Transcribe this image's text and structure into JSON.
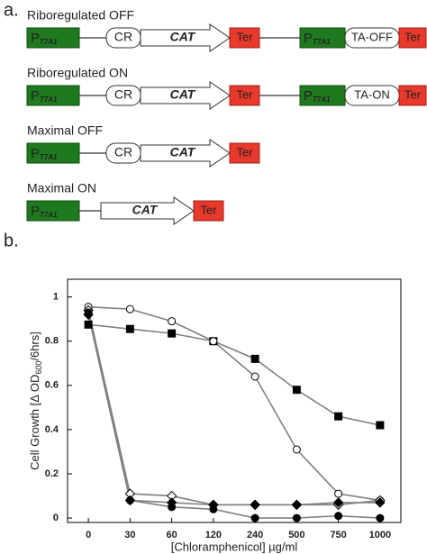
{
  "panel_a": {
    "label": "a.",
    "constructs": [
      {
        "title": "Riboregulated OFF",
        "parts": [
          {
            "kind": "promoter",
            "text": "P",
            "sub": "T7A1"
          },
          {
            "kind": "cr",
            "text": "CR"
          },
          {
            "kind": "cds",
            "text": "CAT"
          },
          {
            "kind": "ter",
            "text": "Ter"
          },
          {
            "kind": "promoter",
            "text": "P",
            "sub": "T7A1"
          },
          {
            "kind": "ta",
            "text": "TA-OFF"
          },
          {
            "kind": "ter",
            "text": "Ter"
          }
        ]
      },
      {
        "title": "Riboregulated ON",
        "parts": [
          {
            "kind": "promoter",
            "text": "P",
            "sub": "T7A1"
          },
          {
            "kind": "cr",
            "text": "CR"
          },
          {
            "kind": "cds",
            "text": "CAT"
          },
          {
            "kind": "ter",
            "text": "Ter"
          },
          {
            "kind": "promoter",
            "text": "P",
            "sub": "T7A1"
          },
          {
            "kind": "ta",
            "text": "TA-ON"
          },
          {
            "kind": "ter",
            "text": "Ter"
          }
        ]
      },
      {
        "title": "Maximal OFF",
        "parts": [
          {
            "kind": "promoter",
            "text": "P",
            "sub": "T7A1"
          },
          {
            "kind": "cr",
            "text": "CR"
          },
          {
            "kind": "cds",
            "text": "CAT"
          },
          {
            "kind": "ter",
            "text": "Ter"
          }
        ]
      },
      {
        "title": "Maximal ON",
        "parts": [
          {
            "kind": "promoter",
            "text": "P",
            "sub": "T7A1"
          },
          {
            "kind": "cds",
            "text": "CAT"
          },
          {
            "kind": "ter",
            "text": "Ter"
          }
        ]
      }
    ]
  },
  "panel_b": {
    "label": "b."
  },
  "chart_data": {
    "type": "line",
    "x_label": "[Chloramphenicol] µg/ml",
    "y_label": {
      "main": "Cell Growth [Δ OD",
      "sub": "600",
      "tail": "/6hrs]"
    },
    "categories": [
      "0",
      "30",
      "60",
      "120",
      "240",
      "500",
      "750",
      "1000"
    ],
    "ylim": [
      -0.02,
      1.08
    ],
    "yticks": [
      0,
      0.2,
      0.4,
      0.6,
      0.8,
      1
    ],
    "series": [
      {
        "marker": "square",
        "filled": true,
        "color": "#808080",
        "values": [
          0.875,
          0.855,
          0.835,
          0.8,
          0.72,
          0.58,
          0.46,
          0.42
        ]
      },
      {
        "marker": "circle",
        "filled": false,
        "color": "#808080",
        "values": [
          0.955,
          0.945,
          0.89,
          0.8,
          0.64,
          0.31,
          0.11,
          0.08
        ]
      },
      {
        "marker": "diamond",
        "filled": false,
        "color": "#808080",
        "values": [
          0.94,
          0.11,
          0.1,
          0.06,
          0.06,
          0.06,
          0.06,
          0.08
        ]
      },
      {
        "marker": "diamond",
        "filled": true,
        "color": "#808080",
        "values": [
          0.92,
          0.08,
          0.07,
          0.06,
          0.06,
          0.06,
          0.07,
          0.07
        ]
      },
      {
        "marker": "circle",
        "filled": true,
        "color": "#808080",
        "values": [
          0.93,
          0.08,
          0.05,
          0.04,
          0.0,
          0.0,
          0.01,
          0.0
        ]
      }
    ]
  }
}
